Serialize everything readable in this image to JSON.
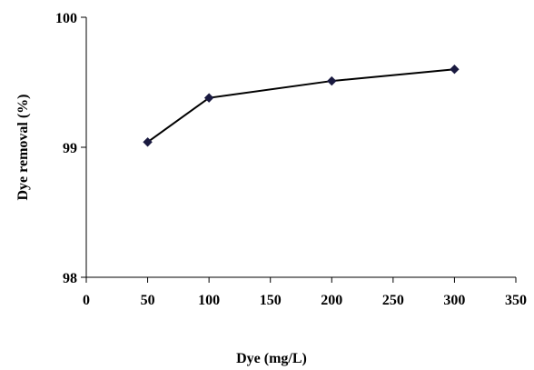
{
  "chart_data": {
    "type": "line",
    "title": "",
    "xlabel": "Dye (mg/L)",
    "ylabel": "Dye removal (%)",
    "xlim": [
      0,
      350
    ],
    "ylim": [
      98,
      100
    ],
    "x_ticks": [
      "0",
      "50",
      "100",
      "150",
      "200",
      "250",
      "300",
      "350"
    ],
    "y_ticks": [
      "98",
      "99",
      "100"
    ],
    "grid": false,
    "legend": "none",
    "series": [
      {
        "color": "#000000",
        "marker": "diamond",
        "marker_color": "#1a1a40",
        "x": [
          50,
          100,
          200,
          300
        ],
        "y": [
          99.04,
          99.38,
          99.51,
          99.6
        ]
      }
    ]
  }
}
